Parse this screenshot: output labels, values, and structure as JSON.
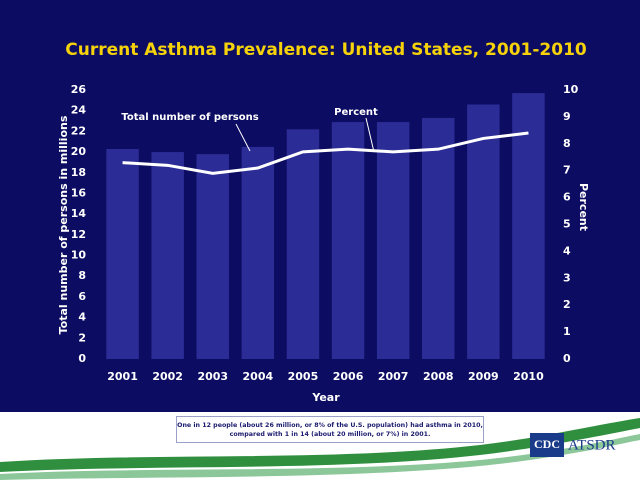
{
  "chart_data": {
    "type": "bar",
    "title": "Current Asthma Prevalence: United States, 2001-2010",
    "categories": [
      "2001",
      "2002",
      "2003",
      "2004",
      "2005",
      "2006",
      "2007",
      "2008",
      "2009",
      "2010"
    ],
    "series": [
      {
        "name": "Total number of persons",
        "type": "bar",
        "color": "#2c2c96",
        "values": [
          20.3,
          20.0,
          19.8,
          20.5,
          22.2,
          22.9,
          22.9,
          23.3,
          24.6,
          25.7
        ]
      },
      {
        "name": "Percent",
        "type": "line",
        "axis": "y2",
        "color": "#ffffff",
        "values": [
          7.3,
          7.2,
          6.9,
          7.1,
          7.7,
          7.8,
          7.7,
          7.8,
          8.2,
          8.4
        ]
      }
    ],
    "xlabel": "Year",
    "ylabel": "Total number of persons in millions",
    "y2label": "Percent",
    "ylim": [
      0,
      26
    ],
    "yticks": [
      0,
      2,
      4,
      6,
      8,
      10,
      12,
      14,
      16,
      18,
      20,
      22,
      24,
      26
    ],
    "y2lim": [
      0,
      10
    ],
    "y2ticks": [
      0,
      1,
      2,
      3,
      4,
      5,
      6,
      7,
      8,
      9,
      10
    ],
    "grid": false
  },
  "footnote": "One in 12 people (about 26 million, or 8% of the U.S. population) had asthma in 2010, compared with 1 in 14 (about 20 million, or 7%) in 2001.",
  "logos": [
    "CDC",
    "ATSDR"
  ]
}
